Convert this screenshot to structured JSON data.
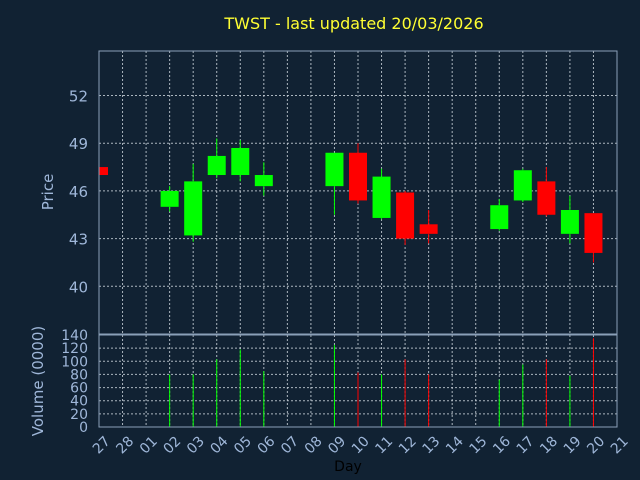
{
  "chart_data": {
    "type": "candlestick",
    "title": "TWST - last updated 20/03/2026",
    "xlabel": "Day",
    "ylabel": "Price",
    "volume_label": "Volume (0000)",
    "x_tick_labels": [
      "27",
      "28",
      "01",
      "02",
      "03",
      "04",
      "05",
      "06",
      "07",
      "08",
      "09",
      "10",
      "11",
      "12",
      "13",
      "14",
      "15",
      "16",
      "17",
      "18",
      "19",
      "20",
      "21"
    ],
    "price_ylim": [
      37.0,
      54.8
    ],
    "price_ticks": [
      40,
      43,
      46,
      49,
      52
    ],
    "volume_ylim": [
      0,
      140
    ],
    "volume_ticks": [
      0,
      20,
      40,
      60,
      80,
      100,
      120,
      140
    ],
    "grid": true,
    "colors": {
      "up": "#00ff00",
      "down": "#ff0000",
      "background": "#112233",
      "title": "#ffff33",
      "text": "#9fb7d9"
    },
    "candles": [
      {
        "x": 0,
        "open": 47.5,
        "high": 47.5,
        "low": 47.0,
        "close": 47.0,
        "volume": 0
      },
      {
        "x": 3,
        "open": 45.0,
        "high": 46.3,
        "low": 44.7,
        "close": 46.0,
        "volume": 80
      },
      {
        "x": 4,
        "open": 43.2,
        "high": 47.7,
        "low": 42.8,
        "close": 46.6,
        "volume": 80
      },
      {
        "x": 5,
        "open": 47.0,
        "high": 49.3,
        "low": 46.8,
        "close": 48.2,
        "volume": 103
      },
      {
        "x": 6,
        "open": 47.0,
        "high": 49.2,
        "low": 46.6,
        "close": 48.7,
        "volume": 118
      },
      {
        "x": 7,
        "open": 46.3,
        "high": 47.8,
        "low": 45.7,
        "close": 47.0,
        "volume": 85
      },
      {
        "x": 10,
        "open": 46.3,
        "high": 48.4,
        "low": 44.5,
        "close": 48.4,
        "volume": 125
      },
      {
        "x": 11,
        "open": 48.4,
        "high": 49.0,
        "low": 45.2,
        "close": 45.4,
        "volume": 83
      },
      {
        "x": 12,
        "open": 44.3,
        "high": 47.4,
        "low": 44.2,
        "close": 46.9,
        "volume": 80
      },
      {
        "x": 13,
        "open": 45.9,
        "high": 46.0,
        "low": 42.6,
        "close": 43.0,
        "volume": 103
      },
      {
        "x": 14,
        "open": 43.9,
        "high": 44.8,
        "low": 42.7,
        "close": 43.3,
        "volume": 80
      },
      {
        "x": 17,
        "open": 43.6,
        "high": 45.5,
        "low": 43.5,
        "close": 45.1,
        "volume": 72
      },
      {
        "x": 18,
        "open": 45.4,
        "high": 47.4,
        "low": 45.3,
        "close": 47.3,
        "volume": 95
      },
      {
        "x": 19,
        "open": 46.6,
        "high": 47.5,
        "low": 44.4,
        "close": 44.5,
        "volume": 103
      },
      {
        "x": 20,
        "open": 43.3,
        "high": 45.7,
        "low": 42.7,
        "close": 44.8,
        "volume": 78
      },
      {
        "x": 21,
        "open": 44.6,
        "high": 44.6,
        "low": 41.5,
        "close": 42.1,
        "volume": 135
      }
    ]
  }
}
